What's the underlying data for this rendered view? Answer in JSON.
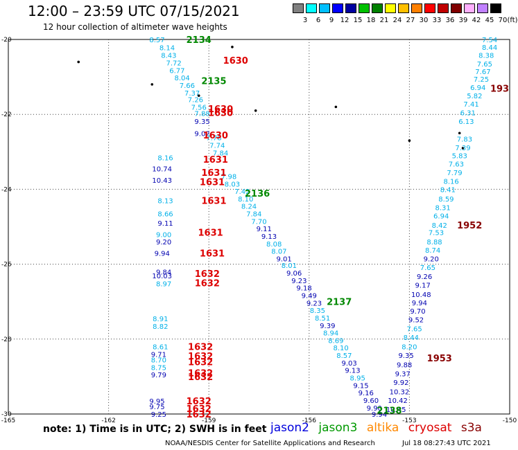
{
  "title": "12:00 – 23:59 UTC 07/15/2021",
  "subtitle": "12 hour collection of altimeter wave heights",
  "legend": {
    "unit": "(ft)",
    "ticks": [
      "3",
      "6",
      "9",
      "12",
      "15",
      "18",
      "21",
      "24",
      "27",
      "30",
      "33",
      "36",
      "39",
      "42",
      "45",
      "70"
    ],
    "colors": [
      "#808080",
      "#00ffff",
      "#00bfff",
      "#0000ff",
      "#0000a0",
      "#00c000",
      "#008000",
      "#ffff00",
      "#ffc000",
      "#ff8000",
      "#ff0000",
      "#c00000",
      "#800000",
      "#ffb0ff",
      "#c080ff",
      "#000000"
    ]
  },
  "footer": {
    "note": "note: 1) Time is in UTC; 2) SWH is in feet",
    "satellites": [
      {
        "name": "jason2",
        "color": "#0000dd"
      },
      {
        "name": "jason3",
        "color": "#009900"
      },
      {
        "name": "altika",
        "color": "#ff8800"
      },
      {
        "name": "cryosat",
        "color": "#dd0000"
      },
      {
        "name": "s3a",
        "color": "#880000"
      }
    ],
    "credit": "NOAA/NESDIS Center for Satellite Applications and Research",
    "timestamp": "Jul 18 08:27:43 UTC 2021"
  },
  "chart_data": {
    "type": "scatter",
    "xlim": [
      -165,
      -150
    ],
    "ylim": [
      -30,
      -20
    ],
    "x_ticks": [
      "-165",
      "-162",
      "-159",
      "-156",
      "-153",
      "-150"
    ],
    "y_ticks": [
      "-20",
      "-22",
      "-24",
      "-26",
      "-28",
      "-30"
    ],
    "grid": true,
    "colors": {
      "cyan": "#00b0e8",
      "blue": "#0000b0",
      "green": "#008800",
      "red": "#dd0000",
      "darkred": "#880000"
    },
    "islands": [
      {
        "lon": -162.9,
        "lat": -20.6
      },
      {
        "lon": -158.3,
        "lat": -20.2
      },
      {
        "lon": -160.7,
        "lat": -21.2
      },
      {
        "lon": -159.3,
        "lat": -21.5
      },
      {
        "lon": -157.6,
        "lat": -21.9
      },
      {
        "lon": -155.2,
        "lat": -21.8
      },
      {
        "lon": -153.0,
        "lat": -22.7
      },
      {
        "lon": -151.5,
        "lat": -22.5
      },
      {
        "lon": -151.4,
        "lat": -22.9
      }
    ],
    "points": [
      {
        "lon": -160.55,
        "lat": -20.0,
        "label": "8.57",
        "c": "cyan"
      },
      {
        "lon": -160.25,
        "lat": -20.21,
        "label": "8.14",
        "c": "cyan"
      },
      {
        "lon": -160.2,
        "lat": -20.42,
        "label": "8.43",
        "c": "cyan"
      },
      {
        "lon": -160.05,
        "lat": -20.62,
        "label": "7.72",
        "c": "cyan"
      },
      {
        "lon": -159.95,
        "lat": -20.82,
        "label": "6.77",
        "c": "cyan"
      },
      {
        "lon": -159.8,
        "lat": -21.02,
        "label": "8.04",
        "c": "cyan"
      },
      {
        "lon": -159.65,
        "lat": -21.22,
        "label": "7.66",
        "c": "cyan"
      },
      {
        "lon": -159.5,
        "lat": -21.42,
        "label": "7.37",
        "c": "cyan"
      },
      {
        "lon": -159.4,
        "lat": -21.6,
        "label": "7.26",
        "c": "cyan"
      },
      {
        "lon": -159.3,
        "lat": -21.8,
        "label": "7.56",
        "c": "cyan"
      },
      {
        "lon": -159.2,
        "lat": -21.97,
        "label": "7.88",
        "c": "cyan"
      },
      {
        "lon": -159.2,
        "lat": -22.18,
        "label": "9.35",
        "c": "blue"
      },
      {
        "lon": -159.2,
        "lat": -22.5,
        "label": "9.02",
        "c": "blue"
      },
      {
        "lon": -158.85,
        "lat": -22.62,
        "label": "7.78",
        "c": "cyan"
      },
      {
        "lon": -158.75,
        "lat": -22.82,
        "label": "7.74",
        "c": "cyan"
      },
      {
        "lon": -158.65,
        "lat": -23.02,
        "label": "7.84",
        "c": "cyan"
      },
      {
        "lon": -160.3,
        "lat": -23.15,
        "label": "8.16",
        "c": "cyan"
      },
      {
        "lon": -160.4,
        "lat": -23.45,
        "label": "10.74",
        "c": "blue"
      },
      {
        "lon": -160.4,
        "lat": -23.75,
        "label": "10.43",
        "c": "blue"
      },
      {
        "lon": -158.4,
        "lat": -23.65,
        "label": "7.98",
        "c": "cyan"
      },
      {
        "lon": -158.3,
        "lat": -23.85,
        "label": "8.03",
        "c": "cyan"
      },
      {
        "lon": -158.0,
        "lat": -24.05,
        "label": "7.42",
        "c": "cyan"
      },
      {
        "lon": -157.9,
        "lat": -24.25,
        "label": "8.10",
        "c": "cyan"
      },
      {
        "lon": -157.8,
        "lat": -24.45,
        "label": "8.24",
        "c": "cyan"
      },
      {
        "lon": -157.65,
        "lat": -24.65,
        "label": "7.84",
        "c": "cyan"
      },
      {
        "lon": -157.5,
        "lat": -24.85,
        "label": "7.70",
        "c": "cyan"
      },
      {
        "lon": -157.35,
        "lat": -25.05,
        "label": "9.11",
        "c": "blue"
      },
      {
        "lon": -157.2,
        "lat": -25.25,
        "label": "9.13",
        "c": "blue"
      },
      {
        "lon": -157.05,
        "lat": -25.45,
        "label": "8.08",
        "c": "cyan"
      },
      {
        "lon": -156.9,
        "lat": -25.65,
        "label": "8.07",
        "c": "cyan"
      },
      {
        "lon": -156.75,
        "lat": -25.85,
        "label": "9.01",
        "c": "blue"
      },
      {
        "lon": -156.6,
        "lat": -26.03,
        "label": "8.01",
        "c": "cyan"
      },
      {
        "lon": -156.45,
        "lat": -26.23,
        "label": "9.06",
        "c": "blue"
      },
      {
        "lon": -156.3,
        "lat": -26.43,
        "label": "9.23",
        "c": "blue"
      },
      {
        "lon": -156.15,
        "lat": -26.63,
        "label": "9.18",
        "c": "blue"
      },
      {
        "lon": -156.0,
        "lat": -26.83,
        "label": "9.49",
        "c": "blue"
      },
      {
        "lon": -155.85,
        "lat": -27.03,
        "label": "9.23",
        "c": "blue"
      },
      {
        "lon": -155.75,
        "lat": -27.23,
        "label": "8.35",
        "c": "cyan"
      },
      {
        "lon": -155.6,
        "lat": -27.43,
        "label": "8.51",
        "c": "cyan"
      },
      {
        "lon": -155.45,
        "lat": -27.63,
        "label": "9.39",
        "c": "blue"
      },
      {
        "lon": -155.35,
        "lat": -27.83,
        "label": "8.94",
        "c": "cyan"
      },
      {
        "lon": -155.2,
        "lat": -28.03,
        "label": "8.69",
        "c": "cyan"
      },
      {
        "lon": -155.05,
        "lat": -28.23,
        "label": "8.10",
        "c": "cyan"
      },
      {
        "lon": -154.95,
        "lat": -28.43,
        "label": "8.57",
        "c": "cyan"
      },
      {
        "lon": -154.8,
        "lat": -28.63,
        "label": "9.03",
        "c": "blue"
      },
      {
        "lon": -154.7,
        "lat": -28.83,
        "label": "9.13",
        "c": "blue"
      },
      {
        "lon": -154.55,
        "lat": -29.03,
        "label": "8.95",
        "c": "cyan"
      },
      {
        "lon": -154.45,
        "lat": -29.23,
        "label": "9.15",
        "c": "blue"
      },
      {
        "lon": -154.3,
        "lat": -29.43,
        "label": "9.16",
        "c": "blue"
      },
      {
        "lon": -154.15,
        "lat": -29.63,
        "label": "9.60",
        "c": "blue"
      },
      {
        "lon": -154.05,
        "lat": -29.83,
        "label": "9.90",
        "c": "blue"
      },
      {
        "lon": -153.9,
        "lat": -30.0,
        "label": "9.94",
        "c": "blue"
      },
      {
        "lon": -160.3,
        "lat": -24.3,
        "label": "8.13",
        "c": "cyan"
      },
      {
        "lon": -160.3,
        "lat": -24.65,
        "label": "8.66",
        "c": "cyan"
      },
      {
        "lon": -160.3,
        "lat": -24.9,
        "label": "9.11",
        "c": "blue"
      },
      {
        "lon": -160.35,
        "lat": -25.2,
        "label": "9.00",
        "c": "cyan"
      },
      {
        "lon": -160.35,
        "lat": -25.4,
        "label": "9.20",
        "c": "blue"
      },
      {
        "lon": -160.4,
        "lat": -25.7,
        "label": "9.94",
        "c": "blue"
      },
      {
        "lon": -160.35,
        "lat": -26.2,
        "label": "9.84",
        "c": "blue"
      },
      {
        "lon": -160.4,
        "lat": -26.3,
        "label": "10.03",
        "c": "blue"
      },
      {
        "lon": -160.35,
        "lat": -26.52,
        "label": "8.97",
        "c": "cyan"
      },
      {
        "lon": -160.45,
        "lat": -27.45,
        "label": "8.91",
        "c": "cyan"
      },
      {
        "lon": -160.45,
        "lat": -27.65,
        "label": "8.82",
        "c": "cyan"
      },
      {
        "lon": -160.45,
        "lat": -28.2,
        "label": "8.61",
        "c": "cyan"
      },
      {
        "lon": -160.5,
        "lat": -28.4,
        "label": "9.71",
        "c": "blue"
      },
      {
        "lon": -160.5,
        "lat": -28.55,
        "label": "8.70",
        "c": "cyan"
      },
      {
        "lon": -160.5,
        "lat": -28.75,
        "label": "8.75",
        "c": "cyan"
      },
      {
        "lon": -160.5,
        "lat": -28.95,
        "label": "9.79",
        "c": "blue"
      },
      {
        "lon": -160.55,
        "lat": -29.65,
        "label": "9.95",
        "c": "blue"
      },
      {
        "lon": -160.55,
        "lat": -29.8,
        "label": "9.75",
        "c": "blue"
      },
      {
        "lon": -160.5,
        "lat": -30.0,
        "label": "9.25",
        "c": "blue"
      },
      {
        "lon": -150.6,
        "lat": -20.0,
        "label": "7.54",
        "c": "cyan"
      },
      {
        "lon": -150.6,
        "lat": -20.2,
        "label": "8.44",
        "c": "cyan"
      },
      {
        "lon": -150.7,
        "lat": -20.42,
        "label": "8.38",
        "c": "cyan"
      },
      {
        "lon": -150.75,
        "lat": -20.65,
        "label": "7.65",
        "c": "cyan"
      },
      {
        "lon": -150.8,
        "lat": -20.85,
        "label": "7.67",
        "c": "cyan"
      },
      {
        "lon": -150.85,
        "lat": -21.05,
        "label": "7.25",
        "c": "cyan"
      },
      {
        "lon": -150.95,
        "lat": -21.28,
        "label": "6.94",
        "c": "cyan"
      },
      {
        "lon": -151.05,
        "lat": -21.5,
        "label": "5.82",
        "c": "cyan"
      },
      {
        "lon": -151.15,
        "lat": -21.72,
        "label": "7.41",
        "c": "cyan"
      },
      {
        "lon": -151.25,
        "lat": -21.95,
        "label": "6.31",
        "c": "cyan"
      },
      {
        "lon": -151.3,
        "lat": -22.18,
        "label": "6.13",
        "c": "cyan"
      },
      {
        "lon": -151.35,
        "lat": -22.65,
        "label": "7.83",
        "c": "cyan"
      },
      {
        "lon": -151.4,
        "lat": -22.88,
        "label": "7.39",
        "c": "cyan"
      },
      {
        "lon": -151.5,
        "lat": -23.1,
        "label": "5.83",
        "c": "cyan"
      },
      {
        "lon": -151.6,
        "lat": -23.32,
        "label": "7.63",
        "c": "cyan"
      },
      {
        "lon": -151.65,
        "lat": -23.55,
        "label": "7.79",
        "c": "cyan"
      },
      {
        "lon": -151.75,
        "lat": -23.78,
        "label": "8.16",
        "c": "cyan"
      },
      {
        "lon": -151.85,
        "lat": -24.0,
        "label": "8.41",
        "c": "cyan"
      },
      {
        "lon": -151.9,
        "lat": -24.25,
        "label": "8.59",
        "c": "cyan"
      },
      {
        "lon": -152.0,
        "lat": -24.48,
        "label": "8.31",
        "c": "cyan"
      },
      {
        "lon": -152.05,
        "lat": -24.7,
        "label": "6.94",
        "c": "cyan"
      },
      {
        "lon": -152.1,
        "lat": -24.95,
        "label": "8.42",
        "c": "cyan"
      },
      {
        "lon": -152.2,
        "lat": -25.15,
        "label": "7.53",
        "c": "cyan"
      },
      {
        "lon": -152.25,
        "lat": -25.4,
        "label": "8.88",
        "c": "cyan"
      },
      {
        "lon": -152.3,
        "lat": -25.62,
        "label": "8.74",
        "c": "cyan"
      },
      {
        "lon": -152.35,
        "lat": -25.85,
        "label": "9.20",
        "c": "blue"
      },
      {
        "lon": -152.45,
        "lat": -26.08,
        "label": "7.65",
        "c": "cyan"
      },
      {
        "lon": -152.55,
        "lat": -26.32,
        "label": "9.26",
        "c": "blue"
      },
      {
        "lon": -152.6,
        "lat": -26.55,
        "label": "9.17",
        "c": "blue"
      },
      {
        "lon": -152.65,
        "lat": -26.8,
        "label": "10.48",
        "c": "blue"
      },
      {
        "lon": -152.7,
        "lat": -27.02,
        "label": "9.94",
        "c": "blue"
      },
      {
        "lon": -152.75,
        "lat": -27.25,
        "label": "9.70",
        "c": "blue"
      },
      {
        "lon": -152.8,
        "lat": -27.48,
        "label": "9.52",
        "c": "blue"
      },
      {
        "lon": -152.85,
        "lat": -27.72,
        "label": "7.65",
        "c": "cyan"
      },
      {
        "lon": -152.95,
        "lat": -27.95,
        "label": "8.44",
        "c": "cyan"
      },
      {
        "lon": -153.0,
        "lat": -28.2,
        "label": "8.20",
        "c": "cyan"
      },
      {
        "lon": -153.1,
        "lat": -28.43,
        "label": "9.35",
        "c": "blue"
      },
      {
        "lon": -153.15,
        "lat": -28.68,
        "label": "9.88",
        "c": "blue"
      },
      {
        "lon": -153.2,
        "lat": -28.92,
        "label": "9.37",
        "c": "blue"
      },
      {
        "lon": -153.25,
        "lat": -29.15,
        "label": "9.92",
        "c": "blue"
      },
      {
        "lon": -153.3,
        "lat": -29.4,
        "label": "10.32",
        "c": "blue"
      },
      {
        "lon": -153.35,
        "lat": -29.63,
        "label": "10.42",
        "c": "blue"
      },
      {
        "lon": -153.4,
        "lat": -29.87,
        "label": "10.45",
        "c": "blue"
      }
    ],
    "time_labels": [
      {
        "lon": -159.3,
        "lat": -20.0,
        "label": "2134",
        "c": "green"
      },
      {
        "lon": -158.85,
        "lat": -21.1,
        "label": "2135",
        "c": "green"
      },
      {
        "lon": -157.55,
        "lat": -24.1,
        "label": "2136",
        "c": "green"
      },
      {
        "lon": -155.1,
        "lat": -27.0,
        "label": "2137",
        "c": "green"
      },
      {
        "lon": -153.6,
        "lat": -29.9,
        "label": "2138",
        "c": "green"
      },
      {
        "lon": -158.2,
        "lat": -20.55,
        "label": "1630",
        "c": "red"
      },
      {
        "lon": -158.65,
        "lat": -21.85,
        "label": "1630",
        "c": "red"
      },
      {
        "lon": -158.65,
        "lat": -21.95,
        "label": "1630",
        "c": "red"
      },
      {
        "lon": -158.8,
        "lat": -22.55,
        "label": "1630",
        "c": "red"
      },
      {
        "lon": -158.8,
        "lat": -23.2,
        "label": "1631",
        "c": "red"
      },
      {
        "lon": -158.85,
        "lat": -23.55,
        "label": "1631",
        "c": "red"
      },
      {
        "lon": -158.9,
        "lat": -23.8,
        "label": "1631",
        "c": "red"
      },
      {
        "lon": -158.85,
        "lat": -24.3,
        "label": "1631",
        "c": "red"
      },
      {
        "lon": -158.95,
        "lat": -25.15,
        "label": "1631",
        "c": "red"
      },
      {
        "lon": -158.9,
        "lat": -25.7,
        "label": "1631",
        "c": "red"
      },
      {
        "lon": -159.05,
        "lat": -26.25,
        "label": "1632",
        "c": "red"
      },
      {
        "lon": -159.05,
        "lat": -26.5,
        "label": "1632",
        "c": "red"
      },
      {
        "lon": -159.25,
        "lat": -28.2,
        "label": "1632",
        "c": "red"
      },
      {
        "lon": -159.25,
        "lat": -28.45,
        "label": "1632",
        "c": "red"
      },
      {
        "lon": -159.25,
        "lat": -28.6,
        "label": "1632",
        "c": "red"
      },
      {
        "lon": -159.25,
        "lat": -28.9,
        "label": "1632",
        "c": "red"
      },
      {
        "lon": -159.25,
        "lat": -29.0,
        "label": "1632",
        "c": "red"
      },
      {
        "lon": -159.3,
        "lat": -29.65,
        "label": "1632",
        "c": "red"
      },
      {
        "lon": -159.3,
        "lat": -29.85,
        "label": "1632",
        "c": "red"
      },
      {
        "lon": -159.3,
        "lat": -30.0,
        "label": "1632",
        "c": "red"
      },
      {
        "lon": -150.3,
        "lat": -21.3,
        "label": "193",
        "c": "darkred"
      },
      {
        "lon": -151.2,
        "lat": -24.95,
        "label": "1952",
        "c": "darkred"
      },
      {
        "lon": -152.1,
        "lat": -28.5,
        "label": "1953",
        "c": "darkred"
      }
    ]
  }
}
